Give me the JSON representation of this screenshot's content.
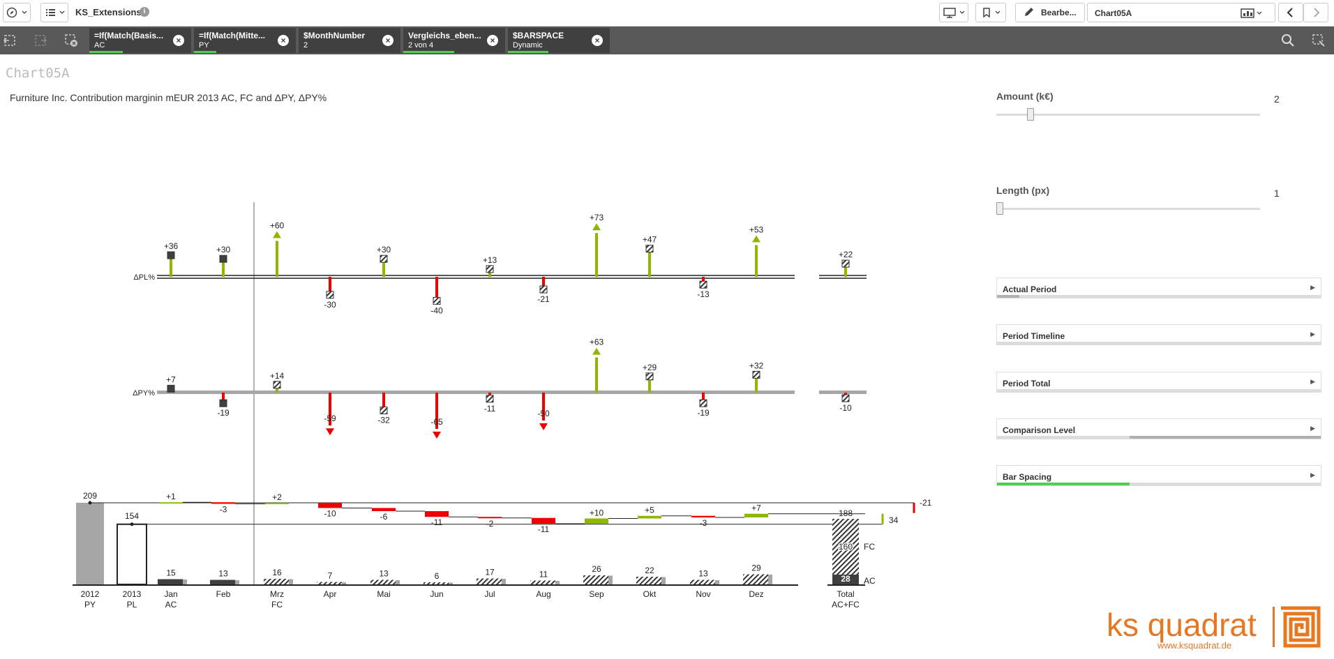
{
  "app": {
    "title": "KS_Extensions",
    "info_icon": "info-icon",
    "edit_label": "Bearbe...",
    "sheet_name": "Chart05A"
  },
  "selections": [
    {
      "field": "=If(Match(Basis...",
      "value": "AC",
      "fill": 0.33
    },
    {
      "field": "=If(Match(Mitte...",
      "value": "PY",
      "fill": 0.22
    },
    {
      "field": "$MonthNumber",
      "value": "2",
      "fill": 0.0
    },
    {
      "field": "Vergleichs_eben...",
      "value": "2 von 4",
      "fill": 0.5
    },
    {
      "field": "$BARSPACE",
      "value": "Dynamic",
      "fill": 0.4
    }
  ],
  "sheet": {
    "chart_title": "Chart05A",
    "subtitle": "Furniture Inc. Contribution marginin mEUR 2013 AC, FC and ΔPY, ΔPY%"
  },
  "sliders": [
    {
      "label": "Amount (k€)",
      "value": "2",
      "level": 0.12
    },
    {
      "label": "Length (px)",
      "value": "1",
      "level": 0.0
    }
  ],
  "panels": [
    {
      "label": "Actual Period",
      "fill_start": 0.0,
      "fill_end": 0.07,
      "color": "#b0b0b0"
    },
    {
      "label": "Period Timeline",
      "fill_start": 0.0,
      "fill_end": 0.0,
      "color": "#b0b0b0"
    },
    {
      "label": "Period Total",
      "fill_start": 0.0,
      "fill_end": 0.0,
      "color": "#b0b0b0"
    },
    {
      "label": "Comparison Level",
      "fill_start": 0.41,
      "fill_end": 1.0,
      "color": "#b0b0b0"
    },
    {
      "label": "Bar Spacing",
      "fill_start": 0.0,
      "fill_end": 0.41,
      "color": "#52cc52"
    }
  ],
  "logo": {
    "name": "ks quadrat",
    "url_text": "www.ksquadrat.de"
  },
  "colors": {
    "positive": "#8db700",
    "negative": "#ee0000",
    "dark": "#404040",
    "grey": "#a6a6a6"
  },
  "chart_data": {
    "type": "bar",
    "title": "",
    "categories": [
      "Jan",
      "Feb",
      "Mrz",
      "Apr",
      "Mai",
      "Jun",
      "Jul",
      "Aug",
      "Sep",
      "Okt",
      "Nov",
      "Dez"
    ],
    "category_sublabels": [
      "AC",
      "",
      "FC",
      "",
      "",
      "",
      "",
      "",
      "",
      "",
      "",
      ""
    ],
    "scenario": [
      "AC",
      "AC",
      "FC",
      "FC",
      "FC",
      "FC",
      "FC",
      "FC",
      "FC",
      "FC",
      "FC",
      "FC"
    ],
    "dpl_pct": {
      "label": "ΔPL%",
      "values": [
        "+36",
        "+30",
        "+60",
        "-30",
        "+30",
        "-40",
        "+13",
        "-21",
        "+73",
        "+47",
        "-13",
        "+53"
      ],
      "numeric": [
        36,
        30,
        60,
        -30,
        30,
        -40,
        13,
        -21,
        73,
        47,
        -13,
        53
      ],
      "total": "+22",
      "total_numeric": 22,
      "overflow_up": [
        false,
        false,
        true,
        false,
        false,
        false,
        false,
        false,
        true,
        false,
        false,
        true
      ]
    },
    "dpy_pct": {
      "label": "ΔPY%",
      "values": [
        "+7",
        "-19",
        "+14",
        "-59",
        "-32",
        "-65",
        "-11",
        "-50",
        "+63",
        "+29",
        "-19",
        "+32"
      ],
      "numeric": [
        7,
        -19,
        14,
        -59,
        -32,
        -65,
        -11,
        -50,
        63,
        29,
        -19,
        32
      ],
      "total": "-10",
      "total_numeric": -10,
      "overflow_up": [
        false,
        false,
        false,
        false,
        false,
        false,
        false,
        false,
        true,
        false,
        false,
        false
      ],
      "overflow_down": [
        false,
        false,
        false,
        true,
        false,
        true,
        false,
        true,
        false,
        false,
        false,
        false
      ]
    },
    "delta_pl": {
      "values": [
        "+1",
        "-3",
        "+2",
        "-10",
        "-6",
        "-11",
        "-2",
        "-11",
        "+10",
        "+5",
        "-3",
        "+7"
      ],
      "numeric": [
        1,
        -3,
        2,
        -10,
        -6,
        -11,
        -2,
        -11,
        10,
        5,
        -3,
        7
      ]
    },
    "monthly": {
      "values": [
        "15",
        "13",
        "16",
        "7",
        "13",
        "6",
        "17",
        "11",
        "26",
        "22",
        "13",
        "29"
      ],
      "numeric": [
        15,
        13,
        16,
        7,
        13,
        6,
        17,
        11,
        26,
        22,
        13,
        29
      ]
    },
    "py_2012": {
      "label": "2012",
      "sublabel": "PY",
      "value": "209",
      "numeric": 209
    },
    "pl_2013": {
      "label": "2013",
      "sublabel": "PL",
      "value": "154",
      "numeric": 154
    },
    "total": {
      "label": "Total",
      "sublabel": "AC+FC",
      "sum": "188",
      "fc": "160",
      "fc_label": "FC",
      "ac": "28",
      "ac_label": "AC",
      "sum_numeric": 188,
      "fc_numeric": 160,
      "ac_numeric": 28
    },
    "side_deltas": {
      "dpy": "-21",
      "dpl": "34"
    }
  }
}
